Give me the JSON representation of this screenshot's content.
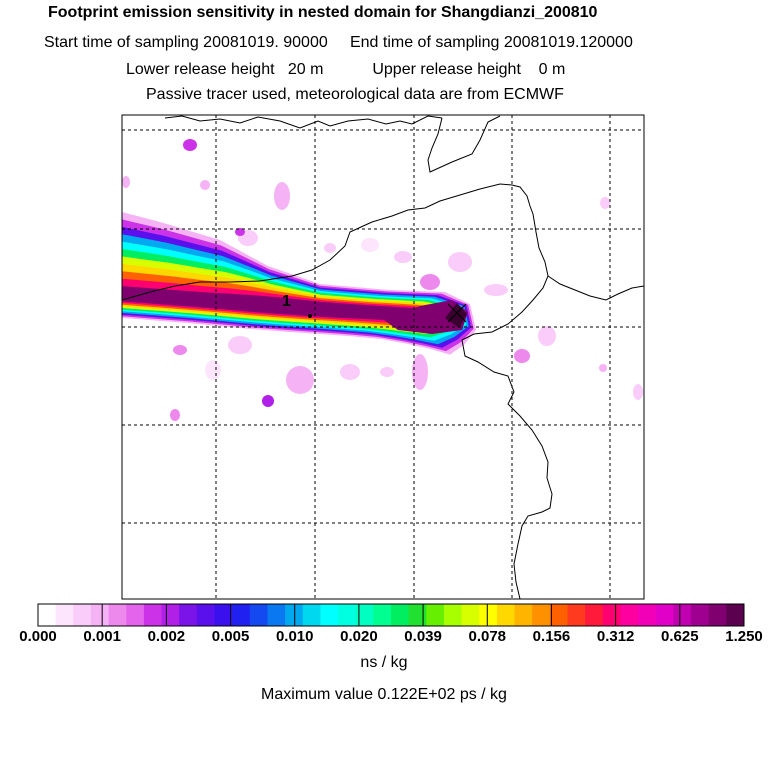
{
  "chart_data": {
    "type": "heatmap",
    "title": "Footprint emission sensitivity in nested domain for Shangdianzi_200810",
    "subtitle_lines": [
      "Start time of sampling 20081019. 90000     End time of sampling 20081019.120000",
      "Lower release height   20 m           Upper release height    0 m",
      "Passive tracer used, meteorological data are from ECMWF"
    ],
    "colorbar": {
      "tick_labels": [
        "0.000",
        "0.001",
        "0.002",
        "0.005",
        "0.010",
        "0.020",
        "0.039",
        "0.078",
        "0.156",
        "0.312",
        "0.625",
        "1.250"
      ],
      "colors": [
        "#ffffff",
        "#fde6fd",
        "#f9ccf9",
        "#f5b3f5",
        "#ed88ed",
        "#e464ec",
        "#cc33e8",
        "#b020e6",
        "#7a14e8",
        "#5a10ec",
        "#3a10ee",
        "#2020f0",
        "#1448f0",
        "#0a78f0",
        "#00a8f0",
        "#00d8f0",
        "#00ffff",
        "#00ffe0",
        "#00ffc0",
        "#00ff90",
        "#00ee60",
        "#22e030",
        "#66f000",
        "#a8ff00",
        "#d8ff00",
        "#ffff00",
        "#ffd800",
        "#ffb400",
        "#ff9000",
        "#ff6000",
        "#ff3a1e",
        "#ff1a3c",
        "#ff0070",
        "#ff00a0",
        "#f200b8",
        "#e000c8",
        "#c000b0",
        "#a00090",
        "#800070",
        "#5a004e"
      ],
      "unit_label": "ns / kg"
    },
    "max_value_label": "Maximum value  0.122E+02 ps / kg",
    "receptor_label": "1",
    "plume_levels": [
      {
        "level": 0.001,
        "color": "#f5b3f5"
      },
      {
        "level": 0.002,
        "color": "#cc33e8"
      },
      {
        "level": 0.005,
        "color": "#5a10ec"
      },
      {
        "level": 0.01,
        "color": "#00a8f0"
      },
      {
        "level": 0.02,
        "color": "#00ffff"
      },
      {
        "level": 0.039,
        "color": "#00ee60"
      },
      {
        "level": 0.078,
        "color": "#d8ff00"
      },
      {
        "level": 0.156,
        "color": "#ffd800"
      },
      {
        "level": 0.312,
        "color": "#ff6000"
      },
      {
        "level": 0.625,
        "color": "#ff0070"
      },
      {
        "level": 1.25,
        "color": "#800070"
      }
    ],
    "grid": true
  }
}
